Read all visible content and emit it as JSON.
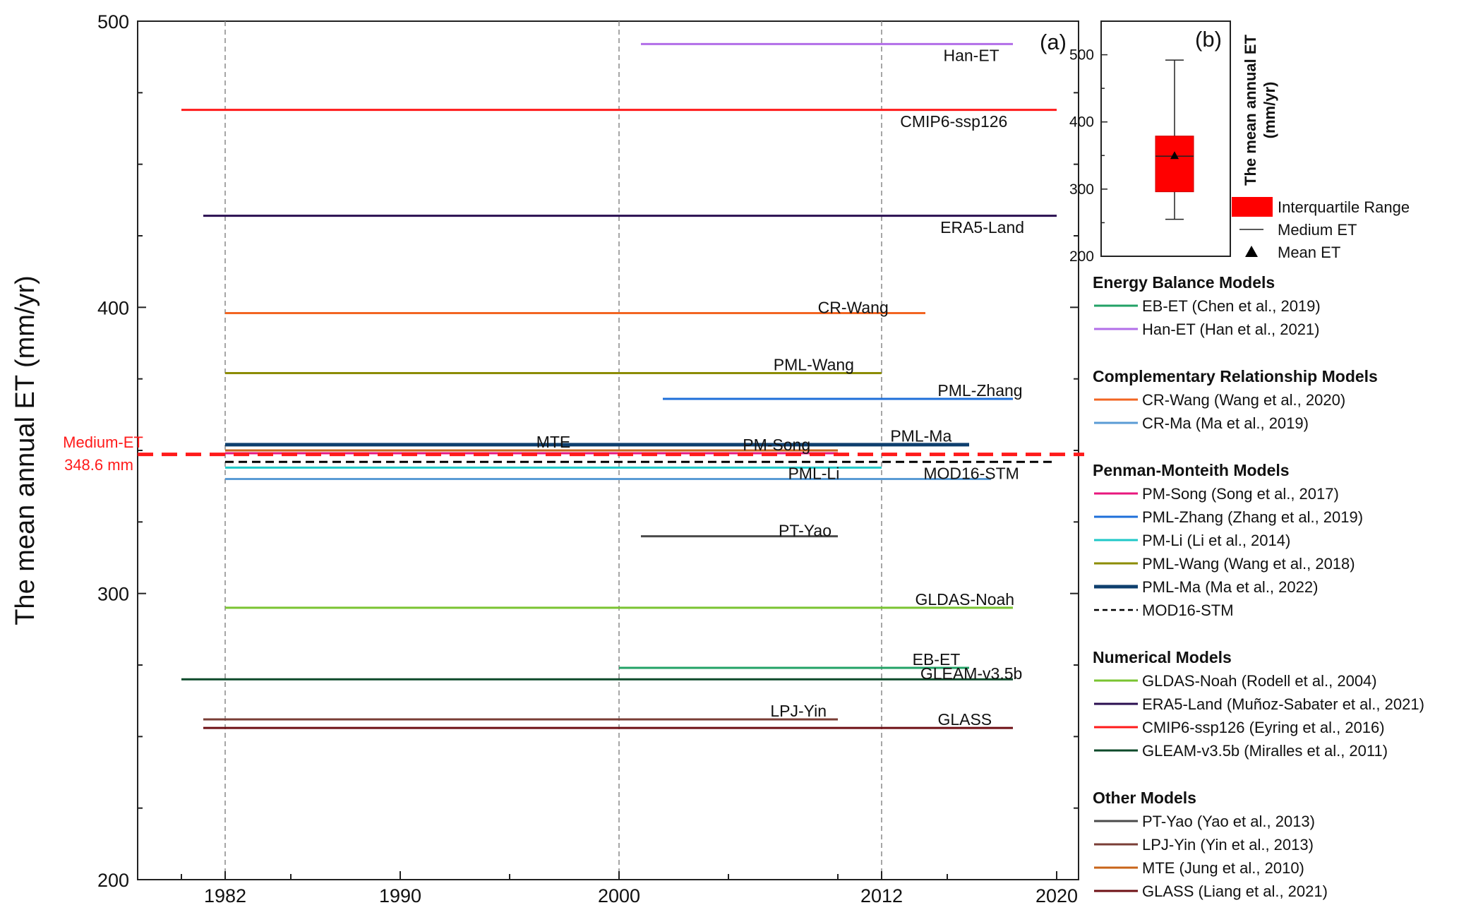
{
  "chart_data": [
    {
      "type": "line",
      "panel_label": "(a)",
      "ylabel": "The mean annual ET (mm/yr)",
      "ylim": [
        200,
        500
      ],
      "xlim": [
        1978,
        2021
      ],
      "y_ticks": [
        "200",
        "300",
        "400",
        "500"
      ],
      "x_ticks": [
        {
          "value": 1982,
          "label": "1982"
        },
        {
          "value": 1990,
          "label": "1990"
        },
        {
          "value": 2000,
          "label": "2000"
        },
        {
          "value": 2012,
          "label": "2012"
        },
        {
          "value": 2020,
          "label": "2020"
        }
      ],
      "vertical_reference_lines": [
        1982,
        2000,
        2012
      ],
      "medium_line": {
        "value": 348.6,
        "label_line1": "Medium-ET",
        "label_line2": "348.6 mm",
        "color": "#ff1a1a"
      },
      "series": [
        {
          "name": "Han-ET",
          "start": 2001,
          "end": 2018,
          "value": 492,
          "color": "#b26ee8",
          "label_x": 2016.1,
          "label_y": 488
        },
        {
          "name": "CMIP6-ssp126",
          "start": 1980,
          "end": 2020,
          "value": 469,
          "color": "#ff1a1a",
          "label_x": 2015.3,
          "label_y": 465
        },
        {
          "name": "ERA5-Land",
          "start": 1981,
          "end": 2020,
          "value": 432,
          "color": "#2a0e50",
          "label_x": 2016.6,
          "label_y": 428
        },
        {
          "name": "CR-Wang",
          "start": 1982,
          "end": 2014,
          "value": 398,
          "color": "#f26522",
          "label_x": 2010.7,
          "label_y": 400
        },
        {
          "name": "PML-Wang",
          "start": 1982,
          "end": 2012,
          "value": 377,
          "color": "#8c8c00",
          "label_x": 2008.9,
          "label_y": 380
        },
        {
          "name": "PML-Zhang",
          "start": 2002,
          "end": 2018,
          "value": 368,
          "color": "#1e6fd9",
          "label_x": 2016.5,
          "label_y": 371
        },
        {
          "name": "PML-Ma",
          "start": 1982,
          "end": 2016,
          "value": 352,
          "color": "#0e3f6e",
          "label_x": 2013.8,
          "label_y": 355
        },
        {
          "name": "MTE",
          "start": 1982,
          "end": 2010,
          "value": 350,
          "color": "#c8641a",
          "label_x": 1997.0,
          "label_y": 353
        },
        {
          "name": "PM-Song",
          "start": 1982,
          "end": 2010,
          "value": 349,
          "color": "#e8177d",
          "label_x": 2007.2,
          "label_y": 352
        },
        {
          "name": "MOD16-STM",
          "start": 1982,
          "end": 2020,
          "value": 346,
          "color": "#000000",
          "dashed": true,
          "label_x": 2016.1,
          "label_y": 342
        },
        {
          "name": "PML-Li",
          "start": 1982,
          "end": 2012,
          "value": 344,
          "color": "#1fc8c8",
          "label_x": 2008.9,
          "label_y": 342
        },
        {
          "name": "CR-Ma",
          "start": 1982,
          "end": 2017,
          "value": 340,
          "color": "#5a9bd5"
        },
        {
          "name": "PT-Yao",
          "start": 2001,
          "end": 2010,
          "value": 320,
          "color": "#4a4a4a",
          "label_x": 2008.5,
          "label_y": 322
        },
        {
          "name": "GLDAS-Noah",
          "start": 1982,
          "end": 2018,
          "value": 295,
          "color": "#7ac431",
          "label_x": 2015.8,
          "label_y": 298
        },
        {
          "name": "EB-ET",
          "start": 2000,
          "end": 2016,
          "value": 274,
          "color": "#22a266",
          "label_x": 2014.5,
          "label_y": 277
        },
        {
          "name": "GLEAM-v3.5b",
          "start": 1980,
          "end": 2018,
          "value": 270,
          "color": "#0d4a2a",
          "label_x": 2016.1,
          "label_y": 272
        },
        {
          "name": "LPJ-Yin",
          "start": 1981,
          "end": 2010,
          "value": 256,
          "color": "#7a3e36",
          "label_x": 2008.2,
          "label_y": 259
        },
        {
          "name": "GLASS",
          "start": 1981,
          "end": 2018,
          "value": 253,
          "color": "#6e0f14",
          "label_x": 2015.8,
          "label_y": 256
        }
      ]
    },
    {
      "type": "box",
      "panel_label": "(b)",
      "ylabel_line1": "The mean annual ET",
      "ylabel_line2": "(mm/yr)",
      "ylim": [
        200,
        550
      ],
      "y_ticks": [
        "200",
        "300",
        "400",
        "500"
      ],
      "box": {
        "whisker_low": 255,
        "q1": 296,
        "median": 349,
        "mean": 350,
        "q3": 379,
        "whisker_high": 492,
        "color": "#ff0000"
      },
      "legend": [
        {
          "label": "Interquartile Range",
          "kind": "patch"
        },
        {
          "label": "Medium ET",
          "kind": "line"
        },
        {
          "label": "Mean ET",
          "kind": "triangle"
        }
      ]
    }
  ],
  "legend": {
    "groups": [
      {
        "title": "Energy Balance Models",
        "items": [
          {
            "label": "EB-ET (Chen et al., 2019)",
            "color": "#22a266"
          },
          {
            "label": "Han-ET (Han et al., 2021)",
            "color": "#b26ee8"
          }
        ]
      },
      {
        "title": "Complementary Relationship Models",
        "items": [
          {
            "label": "CR-Wang (Wang et al., 2020)",
            "color": "#f26522"
          },
          {
            "label": "CR-Ma (Ma et al., 2019)",
            "color": "#5a9bd5"
          }
        ]
      },
      {
        "title": "Penman-Monteith Models",
        "items": [
          {
            "label": "PM-Song (Song et al., 2017)",
            "color": "#e8177d"
          },
          {
            "label": "PML-Zhang (Zhang et al., 2019)",
            "color": "#1e6fd9"
          },
          {
            "label": "PM-Li (Li et al., 2014)",
            "color": "#1fc8c8"
          },
          {
            "label": "PML-Wang (Wang et al., 2018)",
            "color": "#8c8c00"
          },
          {
            "label": "PML-Ma (Ma et al., 2022)",
            "color": "#0e3f6e",
            "thick": true
          },
          {
            "label": "MOD16-STM",
            "color": "#000000",
            "dashed": true
          }
        ]
      },
      {
        "title": "Numerical Models",
        "items": [
          {
            "label": "GLDAS-Noah (Rodell et al., 2004)",
            "color": "#7ac431"
          },
          {
            "label": "ERA5-Land (Muñoz-Sabater et al., 2021)",
            "color": "#2a0e50"
          },
          {
            "label": "CMIP6-ssp126 (Eyring et al., 2016)",
            "color": "#ff1a1a"
          },
          {
            "label": "GLEAM-v3.5b (Miralles et al., 2011)",
            "color": "#0d4a2a"
          }
        ]
      },
      {
        "title": "Other Models",
        "items": [
          {
            "label": "PT-Yao (Yao et al., 2013)",
            "color": "#4a4a4a"
          },
          {
            "label": "LPJ-Yin (Yin et al., 2013)",
            "color": "#7a3e36"
          },
          {
            "label": "MTE (Jung et al., 2010)",
            "color": "#c8641a"
          },
          {
            "label": "GLASS (Liang et al., 2021)",
            "color": "#6e0f14"
          }
        ]
      }
    ]
  }
}
